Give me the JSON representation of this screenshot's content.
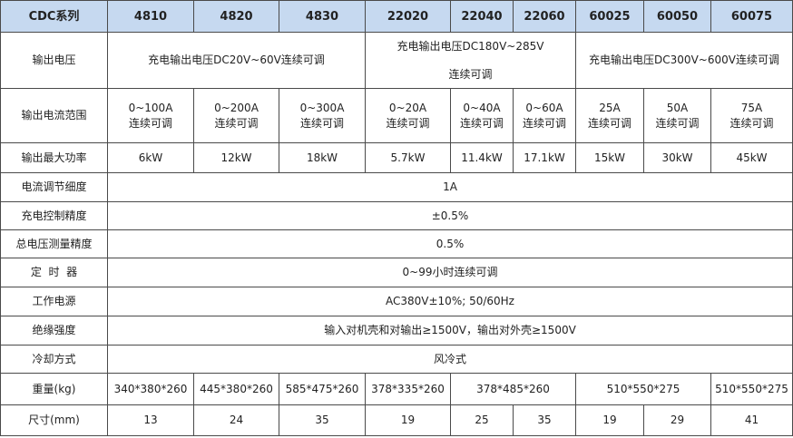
{
  "header": {
    "label": "CDC系列",
    "models": [
      "4810",
      "4820",
      "4830",
      "22020",
      "22040",
      "22060",
      "60025",
      "60050",
      "60075"
    ]
  },
  "colors": {
    "header_bg": "#c6d9f0",
    "border": "#4a4a4a"
  },
  "rows": [
    {
      "id": "output-voltage",
      "label": "输出电压",
      "height": 62,
      "cells": [
        {
          "lines": [
            "充电输出电压DC20V~60V连续可调"
          ],
          "span": 3
        },
        {
          "lines": [
            "充电输出电压DC180V~285V",
            "连续可调"
          ],
          "span": 3,
          "gap": true
        },
        {
          "lines": [
            "充电输出电压DC300V~600V连续可调"
          ],
          "span": 3
        }
      ]
    },
    {
      "id": "output-current",
      "label": "输出电流范围",
      "height": 60,
      "cells": [
        {
          "lines": [
            "0~100A",
            "连续可调"
          ]
        },
        {
          "lines": [
            "0~200A",
            "连续可调"
          ]
        },
        {
          "lines": [
            "0~300A",
            "连续可调"
          ]
        },
        {
          "lines": [
            "0~20A",
            "连续可调"
          ]
        },
        {
          "lines": [
            "0~40A",
            "连续可调"
          ]
        },
        {
          "lines": [
            "0~60A",
            "连续可调"
          ]
        },
        {
          "lines": [
            "25A",
            "连续可调"
          ]
        },
        {
          "lines": [
            "50A",
            "连续可调"
          ]
        },
        {
          "lines": [
            "75A",
            "连续可调"
          ]
        }
      ]
    },
    {
      "id": "max-power",
      "label": "输出最大功率",
      "height": 33,
      "cells": [
        {
          "lines": [
            "6kW"
          ]
        },
        {
          "lines": [
            "12kW"
          ]
        },
        {
          "lines": [
            "18kW"
          ]
        },
        {
          "lines": [
            "5.7kW"
          ]
        },
        {
          "lines": [
            "11.4kW"
          ]
        },
        {
          "lines": [
            "17.1kW"
          ]
        },
        {
          "lines": [
            "15kW"
          ]
        },
        {
          "lines": [
            "30kW"
          ]
        },
        {
          "lines": [
            "45kW"
          ]
        }
      ]
    },
    {
      "id": "current-resolution",
      "label": "电流调节细度",
      "height": 32,
      "cells": [
        {
          "lines": [
            "1A"
          ],
          "span": 9
        }
      ]
    },
    {
      "id": "charge-accuracy",
      "label": "充电控制精度",
      "height": 31,
      "cells": [
        {
          "lines": [
            "±0.5%"
          ],
          "span": 9
        }
      ]
    },
    {
      "id": "voltage-accuracy",
      "label": "总电压测量精度",
      "height": 31,
      "cells": [
        {
          "lines": [
            "0.5%"
          ],
          "span": 9
        }
      ]
    },
    {
      "id": "timer",
      "label": "定  时  器",
      "height": 32,
      "cells": [
        {
          "lines": [
            "0~99小时连续可调"
          ],
          "span": 9
        }
      ]
    },
    {
      "id": "power-supply",
      "label": "工作电源",
      "height": 32,
      "cells": [
        {
          "lines": [
            "AC380V±10%;  50/60Hz"
          ],
          "span": 9
        }
      ]
    },
    {
      "id": "insulation",
      "label": "绝缘强度",
      "height": 32,
      "cells": [
        {
          "lines": [
            "输入对机壳和对输出≥1500V，输出对外壳≥1500V"
          ],
          "span": 9
        }
      ]
    },
    {
      "id": "cooling",
      "label": "冷却方式",
      "height": 31,
      "cells": [
        {
          "lines": [
            "风冷式"
          ],
          "span": 9
        }
      ]
    },
    {
      "id": "weight",
      "label": "重量(kg)",
      "height": 35,
      "cells": [
        {
          "lines": [
            "340*380*260"
          ]
        },
        {
          "lines": [
            "445*380*260"
          ]
        },
        {
          "lines": [
            "585*475*260"
          ]
        },
        {
          "lines": [
            "378*335*260"
          ]
        },
        {
          "lines": [
            "378*485*260"
          ],
          "span": 2
        },
        {
          "lines": [
            "510*550*275"
          ],
          "span": 2
        },
        {
          "lines": [
            "510*550*275"
          ]
        }
      ]
    },
    {
      "id": "size",
      "label": "尺寸(mm)",
      "height": 34,
      "cells": [
        {
          "lines": [
            "13"
          ]
        },
        {
          "lines": [
            "24"
          ]
        },
        {
          "lines": [
            "35"
          ]
        },
        {
          "lines": [
            "19"
          ]
        },
        {
          "lines": [
            "25"
          ]
        },
        {
          "lines": [
            "35"
          ]
        },
        {
          "lines": [
            "19"
          ]
        },
        {
          "lines": [
            "29"
          ]
        },
        {
          "lines": [
            "41"
          ]
        }
      ]
    }
  ]
}
